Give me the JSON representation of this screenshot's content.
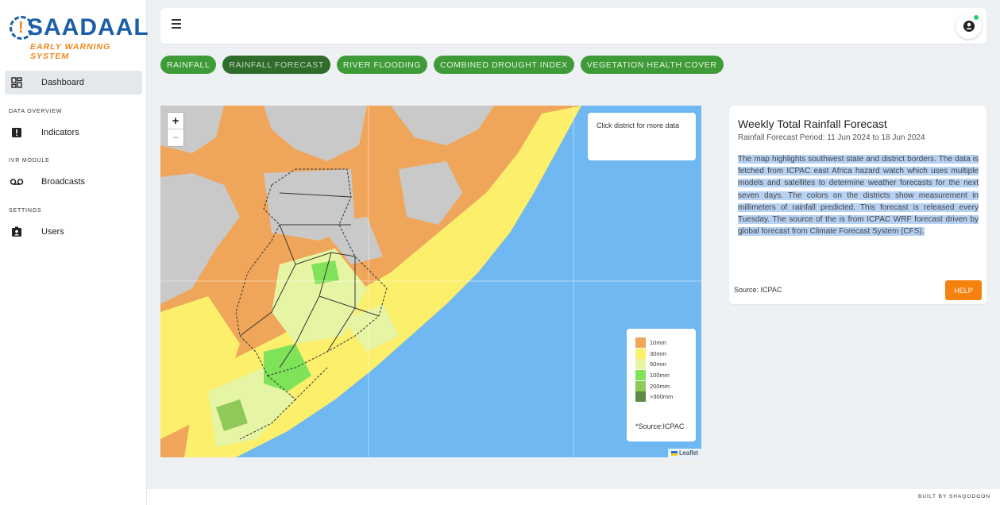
{
  "brand": {
    "name": "SAADAAL",
    "tagline": "EARLY WARNING SYSTEM",
    "primary_color": "#1c5fa8",
    "accent_color": "#f0861b"
  },
  "sidebar": {
    "sections": [
      {
        "label": ""
      },
      {
        "label": "DATA OVERVIEW"
      },
      {
        "label": "IVR MODULE"
      },
      {
        "label": "SETTINGS"
      }
    ],
    "items": [
      {
        "label": "Dashboard",
        "icon": "dashboard-icon",
        "active": true
      },
      {
        "label": "Indicators",
        "icon": "alert-box-icon"
      },
      {
        "label": "Broadcasts",
        "icon": "voicemail-icon"
      },
      {
        "label": "Users",
        "icon": "user-card-icon"
      }
    ]
  },
  "topbar": {
    "menu_icon": "hamburger-icon",
    "account_icon": "account-circle-icon",
    "status_color": "#2ecc71"
  },
  "tabs": [
    {
      "label": "RAINFALL",
      "active": false
    },
    {
      "label": "RAINFALL FORECAST",
      "active": true
    },
    {
      "label": "RIVER FLOODING",
      "active": false
    },
    {
      "label": "COMBINED DROUGHT INDEX",
      "active": false
    },
    {
      "label": "VEGETATION HEALTH COVER",
      "active": false
    }
  ],
  "map": {
    "zoom_in": "+",
    "zoom_out": "−",
    "info_text": "Click district for more data",
    "legend": [
      {
        "label": "10mm",
        "color": "#f0a65a"
      },
      {
        "label": "30mm",
        "color": "#fbef6c"
      },
      {
        "label": "50mm",
        "color": "#e6f5a3"
      },
      {
        "label": "100mm",
        "color": "#7fe35a"
      },
      {
        "label": "200mm",
        "color": "#8fc95a"
      },
      {
        "label": ">300mm",
        "color": "#5d8a45"
      }
    ],
    "legend_source": "*Source:ICPAC",
    "attribution": "Leaflet",
    "sea_color": "#6fb8f2"
  },
  "panel": {
    "title": "Weekly Total Rainfall Forecast",
    "period": "Rainfall Forecast Period: 11 Jun 2024 to 18 Jun 2024",
    "description": "The map highlights southwest state and district borders. The data is fetched from ICPAC east Africa hazard watch which uses multiple models and satellites to determine weather forecasts for the next seven days. The colors on the districts show measurement in millimeters of rainfall predicted. This forecast is released every Tuesday. The source of the is from ICPAC WRF forecast driven by global forecast from Climate Forecast System (CFS).",
    "source": "Source: ICPAC",
    "help_label": "HELP"
  },
  "footer": {
    "text": "BUILT BY SHAQODOON"
  }
}
